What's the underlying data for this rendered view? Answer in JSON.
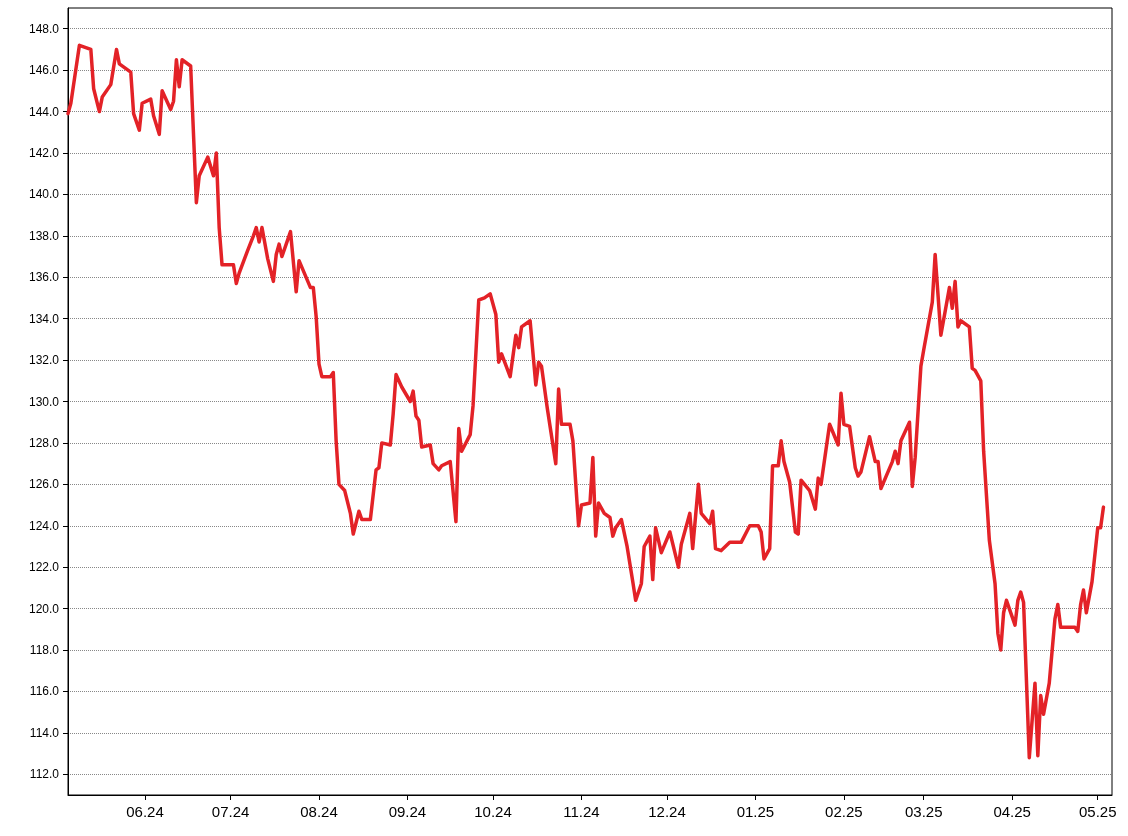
{
  "chart_data": {
    "type": "line",
    "xlim": [
      "2024-05-05",
      "2025-05-06"
    ],
    "ylim": [
      111,
      149
    ],
    "xticks": [
      {
        "value": "2024-06-01",
        "label": "06.24"
      },
      {
        "value": "2024-07-01",
        "label": "07.24"
      },
      {
        "value": "2024-08-01",
        "label": "08.24"
      },
      {
        "value": "2024-09-01",
        "label": "09.24"
      },
      {
        "value": "2024-10-01",
        "label": "10.24"
      },
      {
        "value": "2024-11-01",
        "label": "11.24"
      },
      {
        "value": "2024-12-01",
        "label": "12.24"
      },
      {
        "value": "2025-01-01",
        "label": "01.25"
      },
      {
        "value": "2025-02-01",
        "label": "02.25"
      },
      {
        "value": "2025-03-01",
        "label": "03.25"
      },
      {
        "value": "2025-04-01",
        "label": "04.25"
      },
      {
        "value": "2025-05-01",
        "label": "05.25"
      }
    ],
    "yticks": [
      {
        "value": 112,
        "label": "112.0"
      },
      {
        "value": 114,
        "label": "114.0"
      },
      {
        "value": 116,
        "label": "116.0"
      },
      {
        "value": 118,
        "label": "118.0"
      },
      {
        "value": 120,
        "label": "120.0"
      },
      {
        "value": 122,
        "label": "122.0"
      },
      {
        "value": 124,
        "label": "124.0"
      },
      {
        "value": 126,
        "label": "126.0"
      },
      {
        "value": 128,
        "label": "128.0"
      },
      {
        "value": 130,
        "label": "130.0"
      },
      {
        "value": 132,
        "label": "132.0"
      },
      {
        "value": 134,
        "label": "134.0"
      },
      {
        "value": 136,
        "label": "136.0"
      },
      {
        "value": 138,
        "label": "138.0"
      },
      {
        "value": 140,
        "label": "140.0"
      },
      {
        "value": 142,
        "label": "142.0"
      },
      {
        "value": 144,
        "label": "144.0"
      },
      {
        "value": 146,
        "label": "146.0"
      },
      {
        "value": 148,
        "label": "148.0"
      }
    ],
    "grid": "y",
    "marker": "none",
    "line_style": "solid",
    "series": [
      {
        "color": "#e32227",
        "x": [
          "2024-05-05",
          "2024-05-06",
          "2024-05-09",
          "2024-05-13",
          "2024-05-14",
          "2024-05-16",
          "2024-05-17",
          "2024-05-20",
          "2024-05-22",
          "2024-05-23",
          "2024-05-27",
          "2024-05-28",
          "2024-05-30",
          "2024-05-31",
          "2024-06-03",
          "2024-06-04",
          "2024-06-06",
          "2024-06-07",
          "2024-06-10",
          "2024-06-11",
          "2024-06-12",
          "2024-06-13",
          "2024-06-14",
          "2024-06-17",
          "2024-06-19",
          "2024-06-20",
          "2024-06-23",
          "2024-06-25",
          "2024-06-26",
          "2024-06-27",
          "2024-06-28",
          "2024-07-02",
          "2024-07-03",
          "2024-07-04",
          "2024-07-07",
          "2024-07-09",
          "2024-07-10",
          "2024-07-11",
          "2024-07-12",
          "2024-07-14",
          "2024-07-16",
          "2024-07-17",
          "2024-07-18",
          "2024-07-19",
          "2024-07-22",
          "2024-07-24",
          "2024-07-25",
          "2024-07-29",
          "2024-07-30",
          "2024-07-31",
          "2024-08-01",
          "2024-08-02",
          "2024-08-05",
          "2024-08-06",
          "2024-08-07",
          "2024-08-08",
          "2024-08-10",
          "2024-08-12",
          "2024-08-13",
          "2024-08-15",
          "2024-08-16",
          "2024-08-19",
          "2024-08-21",
          "2024-08-22",
          "2024-08-23",
          "2024-08-26",
          "2024-08-27",
          "2024-08-28",
          "2024-08-30",
          "2024-09-02",
          "2024-09-03",
          "2024-09-04",
          "2024-09-05",
          "2024-09-06",
          "2024-09-09",
          "2024-09-10",
          "2024-09-12",
          "2024-09-13",
          "2024-09-16",
          "2024-09-18",
          "2024-09-19",
          "2024-09-20",
          "2024-09-23",
          "2024-09-24",
          "2024-09-26",
          "2024-09-28",
          "2024-09-30",
          "2024-10-02",
          "2024-10-03",
          "2024-10-04",
          "2024-10-07",
          "2024-10-09",
          "2024-10-10",
          "2024-10-11",
          "2024-10-14",
          "2024-10-16",
          "2024-10-17",
          "2024-10-18",
          "2024-10-20",
          "2024-10-23",
          "2024-10-24",
          "2024-10-25",
          "2024-10-28",
          "2024-10-29",
          "2024-10-31",
          "2024-11-01",
          "2024-11-04",
          "2024-11-05",
          "2024-11-06",
          "2024-11-07",
          "2024-11-09",
          "2024-11-11",
          "2024-11-12",
          "2024-11-13",
          "2024-11-15",
          "2024-11-17",
          "2024-11-19",
          "2024-11-20",
          "2024-11-22",
          "2024-11-23",
          "2024-11-25",
          "2024-11-26",
          "2024-11-27",
          "2024-11-29",
          "2024-12-02",
          "2024-12-05",
          "2024-12-06",
          "2024-12-09",
          "2024-12-10",
          "2024-12-12",
          "2024-12-13",
          "2024-12-16",
          "2024-12-17",
          "2024-12-18",
          "2024-12-20",
          "2024-12-23",
          "2024-12-27",
          "2024-12-30",
          "2025-01-02",
          "2025-01-03",
          "2025-01-04",
          "2025-01-06",
          "2025-01-07",
          "2025-01-09",
          "2025-01-10",
          "2025-01-11",
          "2025-01-13",
          "2025-01-15",
          "2025-01-16",
          "2025-01-17",
          "2025-01-20",
          "2025-01-22",
          "2025-01-23",
          "2025-01-24",
          "2025-01-27",
          "2025-01-30",
          "2025-01-31",
          "2025-02-01",
          "2025-02-03",
          "2025-02-05",
          "2025-02-06",
          "2025-02-07",
          "2025-02-10",
          "2025-02-12",
          "2025-02-13",
          "2025-02-14",
          "2025-02-18",
          "2025-02-19",
          "2025-02-20",
          "2025-02-21",
          "2025-02-24",
          "2025-02-25",
          "2025-02-26",
          "2025-02-28",
          "2025-03-01",
          "2025-03-04",
          "2025-03-05",
          "2025-03-07",
          "2025-03-10",
          "2025-03-11",
          "2025-03-12",
          "2025-03-13",
          "2025-03-14",
          "2025-03-17",
          "2025-03-18",
          "2025-03-19",
          "2025-03-21",
          "2025-03-22",
          "2025-03-24",
          "2025-03-26",
          "2025-03-27",
          "2025-03-28",
          "2025-03-29",
          "2025-03-30",
          "2025-04-02",
          "2025-04-03",
          "2025-04-04",
          "2025-04-05",
          "2025-04-07",
          "2025-04-09",
          "2025-04-10",
          "2025-04-11",
          "2025-04-12",
          "2025-04-14",
          "2025-04-16",
          "2025-04-17",
          "2025-04-18",
          "2025-04-23",
          "2025-04-24",
          "2025-04-25",
          "2025-04-26",
          "2025-04-27",
          "2025-04-29",
          "2025-05-01",
          "2025-05-02",
          "2025-05-03"
        ],
        "values": [
          143.9,
          144.4,
          147.2,
          147.0,
          145.1,
          144.0,
          144.7,
          145.3,
          147.0,
          146.3,
          145.9,
          143.9,
          143.1,
          144.4,
          144.6,
          143.8,
          142.9,
          145.0,
          144.1,
          144.5,
          146.5,
          145.2,
          146.5,
          146.2,
          139.6,
          140.9,
          141.8,
          140.9,
          142.0,
          138.4,
          136.6,
          136.6,
          135.7,
          136.2,
          137.3,
          138.0,
          138.4,
          137.7,
          138.4,
          136.9,
          135.8,
          137.1,
          137.6,
          137.0,
          138.2,
          135.3,
          136.8,
          135.5,
          135.5,
          134.1,
          131.8,
          131.2,
          131.2,
          131.4,
          128.1,
          126.0,
          125.7,
          124.6,
          123.6,
          124.7,
          124.3,
          124.3,
          126.7,
          126.8,
          128.0,
          127.9,
          129.4,
          131.3,
          130.7,
          130.0,
          130.5,
          129.3,
          129.1,
          127.8,
          127.9,
          127.0,
          126.7,
          126.9,
          127.1,
          124.2,
          128.7,
          127.6,
          128.4,
          129.8,
          134.9,
          135.0,
          135.2,
          134.2,
          131.9,
          132.3,
          131.2,
          133.2,
          132.6,
          133.6,
          133.9,
          130.8,
          131.9,
          131.7,
          129.7,
          127.0,
          130.6,
          128.9,
          128.9,
          128.1,
          124.0,
          125.0,
          125.1,
          127.3,
          123.5,
          125.1,
          124.6,
          124.4,
          123.5,
          123.9,
          124.3,
          123.0,
          121.3,
          120.4,
          121.2,
          123.0,
          123.5,
          121.4,
          123.9,
          122.7,
          123.7,
          122.0,
          123.1,
          124.6,
          122.9,
          126.0,
          124.6,
          124.1,
          124.7,
          122.9,
          122.8,
          123.2,
          123.2,
          124.0,
          124.0,
          123.7,
          122.4,
          122.9,
          126.9,
          126.9,
          128.1,
          127.1,
          126.1,
          123.7,
          123.6,
          126.2,
          125.7,
          124.8,
          126.3,
          126.0,
          128.9,
          127.9,
          130.4,
          128.9,
          128.8,
          126.8,
          126.4,
          126.6,
          128.3,
          127.1,
          127.1,
          125.8,
          127.1,
          127.6,
          127.0,
          128.1,
          129.0,
          125.9,
          127.3,
          131.7,
          132.5,
          134.8,
          137.1,
          133.2,
          135.5,
          134.5,
          135.8,
          133.6,
          133.9,
          133.6,
          131.6,
          131.5,
          131.0,
          127.6,
          123.3,
          121.2,
          118.8,
          118.0,
          119.8,
          120.4,
          119.2,
          120.4,
          120.8,
          120.3,
          112.8,
          116.4,
          112.9,
          115.8,
          114.9,
          116.4,
          119.5,
          120.2,
          119.1,
          119.1,
          118.9,
          120.2,
          120.9,
          119.8,
          121.3,
          123.9,
          123.9,
          124.9
        ]
      }
    ]
  }
}
